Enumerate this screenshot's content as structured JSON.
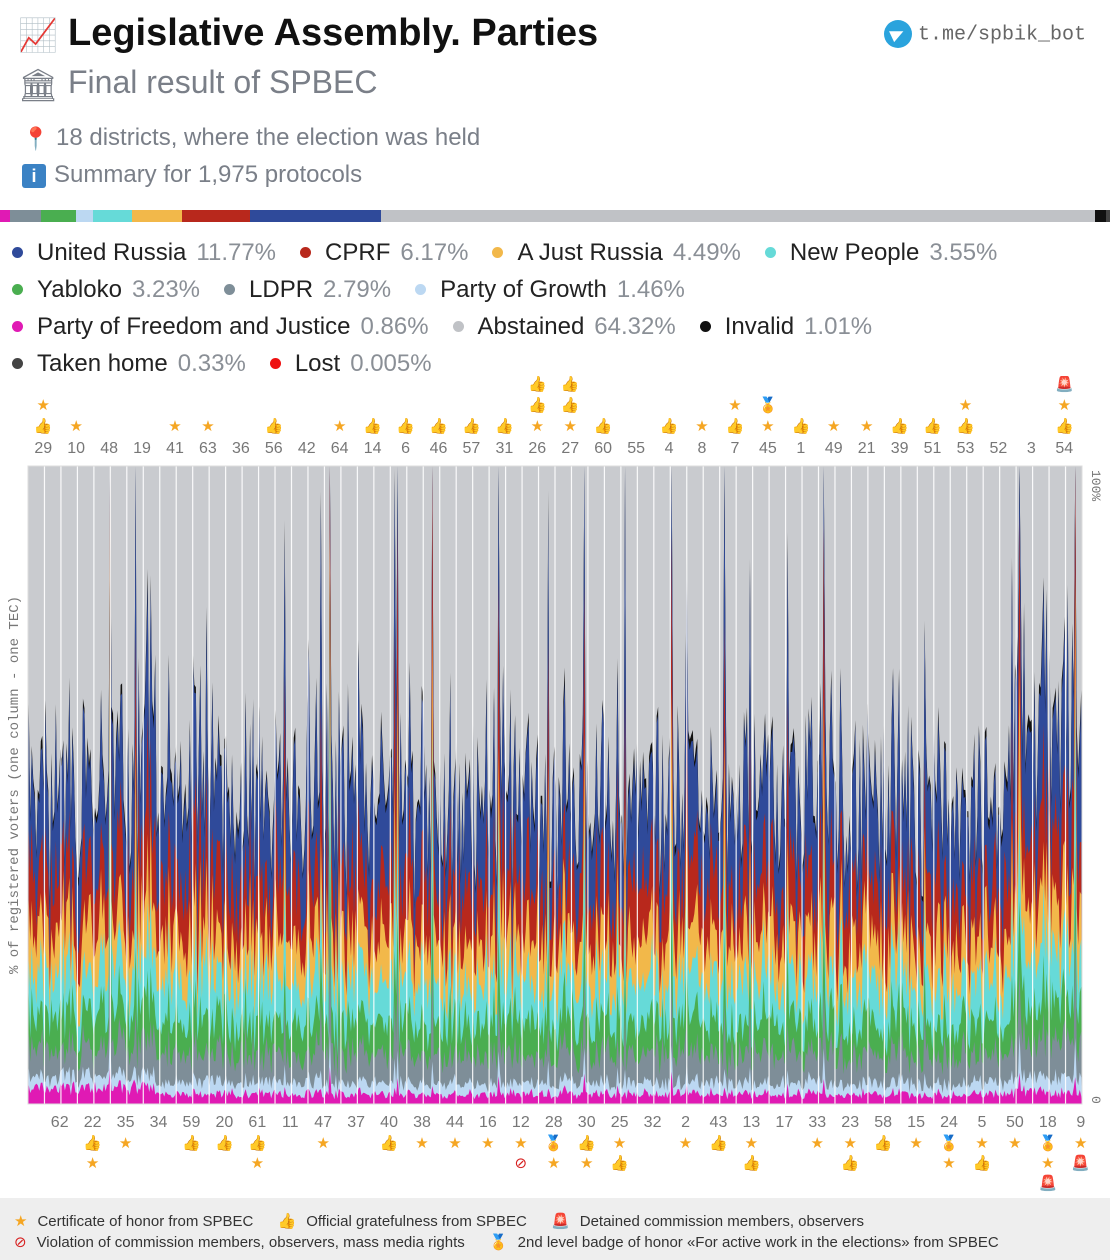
{
  "header": {
    "title": "Legislative Assembly. Parties",
    "title_icon": "chart-increasing-icon",
    "subtitle": "Final result of SPBEC",
    "subtitle_icon": "classical-building-icon",
    "districts": "18 districts, where the election was held",
    "summary": "Summary for 1,975 protocols",
    "telegram": "t.me/spbik_bot"
  },
  "legend": [
    {
      "name": "United Russia",
      "pct": "11.77%",
      "color": "#2f4a9a"
    },
    {
      "name": "CPRF",
      "pct": "6.17%",
      "color": "#b8281c"
    },
    {
      "name": "A Just Russia",
      "pct": "4.49%",
      "color": "#f2b84a"
    },
    {
      "name": "New People",
      "pct": "3.55%",
      "color": "#66dad8"
    },
    {
      "name": "Yabloko",
      "pct": "3.23%",
      "color": "#4aae50"
    },
    {
      "name": "LDPR",
      "pct": "2.79%",
      "color": "#7e8e98"
    },
    {
      "name": "Party of Growth",
      "pct": "1.46%",
      "color": "#bcd8f2"
    },
    {
      "name": "Party of Freedom and Justice",
      "pct": "0.86%",
      "color": "#e01ab4"
    },
    {
      "name": "Abstained",
      "pct": "64.32%",
      "color": "#c0c2c6"
    },
    {
      "name": "Invalid",
      "pct": "1.01%",
      "color": "#111111"
    },
    {
      "name": "Taken home",
      "pct": "0.33%",
      "color": "#444444"
    },
    {
      "name": "Lost",
      "pct": "0.005%",
      "color": "#ee1111"
    }
  ],
  "chart_data": {
    "type": "area",
    "ylabel": "% of registered voters (one column - one TEC)",
    "ylim": [
      0,
      100
    ],
    "y_ticks": [
      "0",
      "100%"
    ],
    "top_tecs": [
      "29",
      "10",
      "48",
      "19",
      "41",
      "63",
      "36",
      "56",
      "42",
      "64",
      "14",
      "6",
      "46",
      "57",
      "31",
      "26",
      "27",
      "60",
      "55",
      "4",
      "8",
      "7",
      "45",
      "1",
      "49",
      "21",
      "39",
      "51",
      "53",
      "52",
      "3",
      "54"
    ],
    "bottom_tecs": [
      "62",
      "22",
      "35",
      "34",
      "59",
      "20",
      "61",
      "11",
      "47",
      "37",
      "40",
      "38",
      "44",
      "16",
      "12",
      "28",
      "30",
      "25",
      "32",
      "2",
      "43",
      "13",
      "17",
      "33",
      "23",
      "58",
      "15",
      "24",
      "5",
      "50",
      "18",
      "9"
    ],
    "top_badges": {
      "29": [
        "thumb",
        "star"
      ],
      "10": [
        "star"
      ],
      "41": [
        "star"
      ],
      "63": [
        "star"
      ],
      "56": [
        "thumb"
      ],
      "64": [
        "star"
      ],
      "14": [
        "thumb"
      ],
      "6": [
        "thumb"
      ],
      "46": [
        "thumb"
      ],
      "57": [
        "thumb"
      ],
      "31": [
        "thumb"
      ],
      "26": [
        "star",
        "thumb",
        "thumb"
      ],
      "27": [
        "star",
        "thumb",
        "thumb"
      ],
      "60": [
        "thumb"
      ],
      "4": [
        "thumb"
      ],
      "8": [
        "star"
      ],
      "7": [
        "thumb",
        "star"
      ],
      "45": [
        "star",
        "medal"
      ],
      "1": [
        "thumb"
      ],
      "49": [
        "star"
      ],
      "21": [
        "star"
      ],
      "39": [
        "thumb"
      ],
      "51": [
        "thumb"
      ],
      "53": [
        "thumb",
        "star"
      ],
      "54": [
        "thumb",
        "star",
        "siren"
      ]
    },
    "bottom_badges": {
      "22": [
        "thumb",
        "star"
      ],
      "35": [
        "star"
      ],
      "59": [
        "thumb"
      ],
      "20": [
        "thumb"
      ],
      "61": [
        "thumb",
        "star"
      ],
      "47": [
        "star"
      ],
      "40": [
        "thumb"
      ],
      "38": [
        "star"
      ],
      "44": [
        "star"
      ],
      "16": [
        "star"
      ],
      "12": [
        "star",
        "prohibited"
      ],
      "28": [
        "medal",
        "star"
      ],
      "30": [
        "thumb",
        "star"
      ],
      "25": [
        "star",
        "thumb"
      ],
      "2": [
        "star"
      ],
      "43": [
        "thumb"
      ],
      "13": [
        "star",
        "thumb"
      ],
      "33": [
        "star"
      ],
      "23": [
        "star",
        "thumb"
      ],
      "58": [
        "thumb"
      ],
      "15": [
        "star"
      ],
      "24": [
        "medal",
        "star"
      ],
      "5": [
        "star",
        "thumb"
      ],
      "50": [
        "star"
      ],
      "18": [
        "medal",
        "star",
        "siren"
      ],
      "9": [
        "star",
        "siren"
      ]
    },
    "series_order": [
      "Party of Freedom and Justice",
      "Party of Growth",
      "LDPR",
      "Yabloko",
      "New People",
      "A Just Russia",
      "CPRF",
      "United Russia",
      "Invalid"
    ],
    "series_typical_pct": [
      0.86,
      1.46,
      2.79,
      3.23,
      3.55,
      4.49,
      6.17,
      11.77,
      1.01
    ]
  },
  "footer": {
    "star": "Certificate of honor from SPBEC",
    "thumb": "Official gratefulness from SPBEC",
    "siren": "Detained commission members, observers",
    "prohibited": "Violation of commission members, observers, mass media rights",
    "medal": "2nd level badge of honor «For active work in the elections» from SPBEC"
  }
}
